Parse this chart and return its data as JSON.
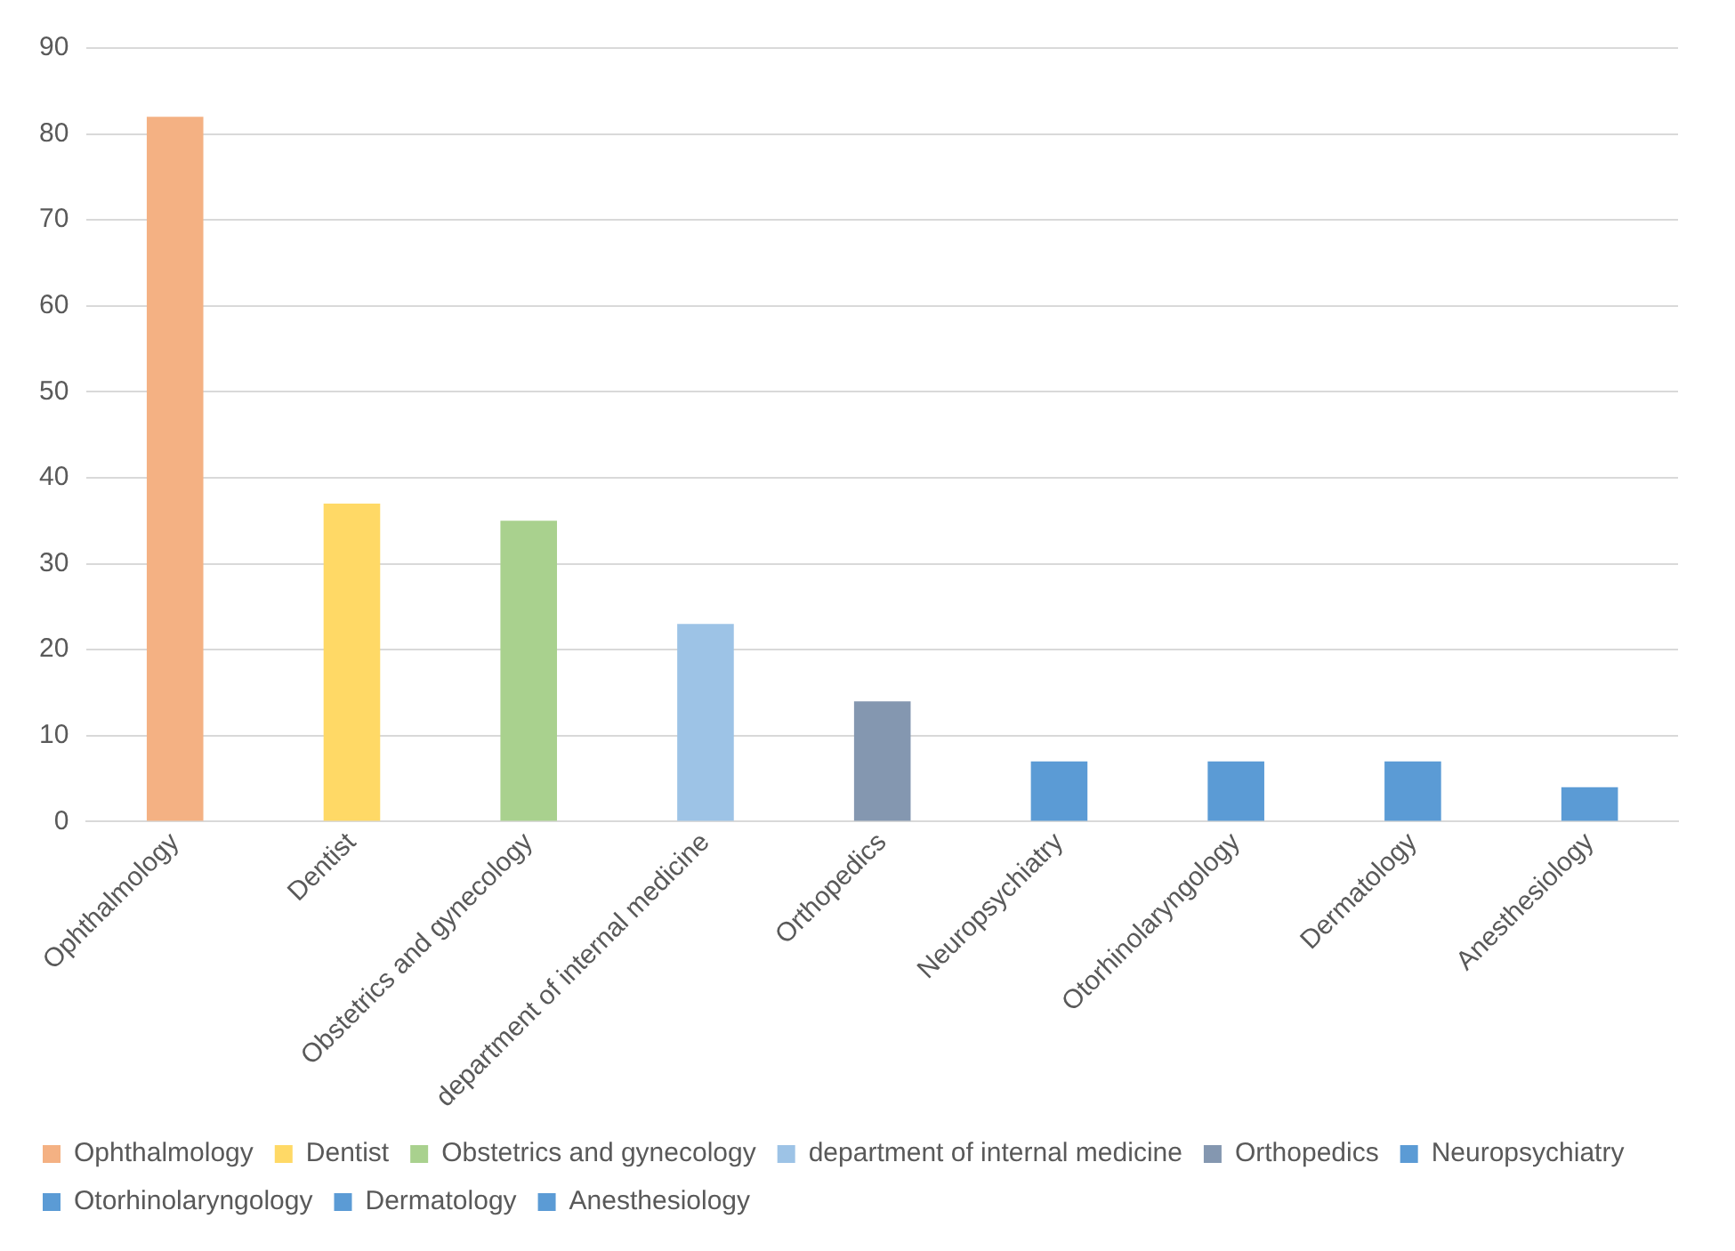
{
  "chart_data": {
    "type": "bar",
    "categories": [
      "Ophthalmology",
      "Dentist",
      "Obstetrics and gynecology",
      "department of internal medicine",
      "Orthopedics",
      "Neuropsychiatry",
      "Otorhinolaryngology",
      "Dermatology",
      "Anesthesiology"
    ],
    "series": [
      {
        "name": "Ophthalmology",
        "color": "#f4b183",
        "values": [
          82,
          null,
          null,
          null,
          null,
          null,
          null,
          null,
          null
        ]
      },
      {
        "name": "Dentist",
        "color": "#ffd966",
        "values": [
          null,
          37,
          null,
          null,
          null,
          null,
          null,
          null,
          null
        ]
      },
      {
        "name": "Obstetrics and gynecology",
        "color": "#a9d18e",
        "values": [
          null,
          null,
          35,
          null,
          null,
          null,
          null,
          null,
          null
        ]
      },
      {
        "name": "department of internal medicine",
        "color": "#9dc3e6",
        "values": [
          null,
          null,
          null,
          23,
          null,
          null,
          null,
          null,
          null
        ]
      },
      {
        "name": "Orthopedics",
        "color": "#8497b0",
        "values": [
          null,
          null,
          null,
          null,
          14,
          null,
          null,
          null,
          null
        ]
      },
      {
        "name": "Neuropsychiatry",
        "color": "#5b9bd5",
        "values": [
          null,
          null,
          null,
          null,
          null,
          7,
          null,
          null,
          null
        ]
      },
      {
        "name": "Otorhinolaryngology",
        "color": "#5b9bd5",
        "values": [
          null,
          null,
          null,
          null,
          null,
          null,
          7,
          null,
          null
        ]
      },
      {
        "name": "Dermatology",
        "color": "#5b9bd5",
        "values": [
          null,
          null,
          null,
          null,
          null,
          null,
          null,
          7,
          null
        ]
      },
      {
        "name": "Anesthesiology",
        "color": "#5b9bd5",
        "values": [
          null,
          null,
          null,
          null,
          null,
          null,
          null,
          null,
          4
        ]
      }
    ],
    "ylim": [
      0,
      90
    ],
    "yticks": [
      0,
      10,
      20,
      30,
      40,
      50,
      60,
      70,
      80,
      90
    ],
    "grid": "y",
    "legend": "bottom"
  }
}
